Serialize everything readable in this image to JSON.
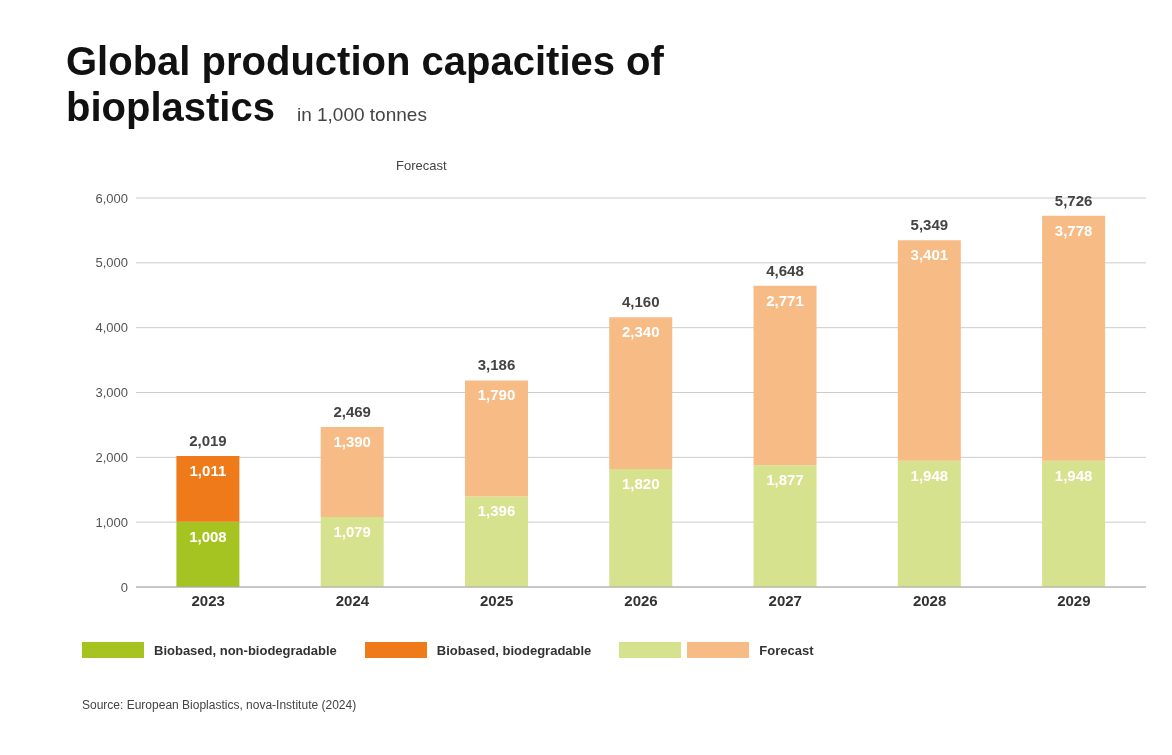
{
  "chart_data": {
    "type": "bar",
    "title": "Global production capacities of bioplastics",
    "subtitle": "in 1,000 tonnes",
    "categories": [
      "2023",
      "2024",
      "2025",
      "2026",
      "2027",
      "2028",
      "2029"
    ],
    "stacked": true,
    "series": [
      {
        "name": "Biobased, non-biodegradable",
        "color": "#a5c422",
        "values": [
          1008,
          null,
          null,
          null,
          null,
          null,
          null
        ],
        "value_labels": [
          "1,008",
          null,
          null,
          null,
          null,
          null,
          null
        ]
      },
      {
        "name": "Biobased, biodegradable",
        "color": "#ee7a1a",
        "values": [
          1011,
          null,
          null,
          null,
          null,
          null,
          null
        ],
        "value_labels": [
          "1,011",
          null,
          null,
          null,
          null,
          null,
          null
        ]
      },
      {
        "color": "#d6e28e",
        "values": [
          null,
          1079,
          1396,
          1820,
          1877,
          1948,
          1948
        ],
        "value_labels": [
          null,
          "1,079",
          "1,396",
          "1,820",
          "1,877",
          "1,948",
          "1,948"
        ]
      },
      {
        "name": "Forecast",
        "color": "#f7bb86",
        "values": [
          null,
          1390,
          1790,
          2340,
          2771,
          3401,
          3778
        ],
        "value_labels": [
          null,
          "1,390",
          "1,790",
          "2,340",
          "2,771",
          "3,401",
          "3,778"
        ]
      }
    ],
    "totals": [
      "2,019",
      "2,469",
      "3,186",
      "4,160",
      "4,648",
      "5,349",
      "5,726"
    ],
    "ylim": [
      0,
      6000
    ],
    "yticks": [
      {
        "value": 0,
        "label": "0"
      },
      {
        "value": 1000,
        "label": "1,000"
      },
      {
        "value": 2000,
        "label": "2,000"
      },
      {
        "value": 3000,
        "label": "3,000"
      },
      {
        "value": 4000,
        "label": "4,000"
      },
      {
        "value": 5000,
        "label": "5,000"
      },
      {
        "value": 6000,
        "label": "6,000"
      }
    ],
    "grid": "y",
    "legend": "bottom",
    "annotations": [
      "Forecast",
      "Source: European Bioplastics, nova-Institute (2024)"
    ]
  }
}
